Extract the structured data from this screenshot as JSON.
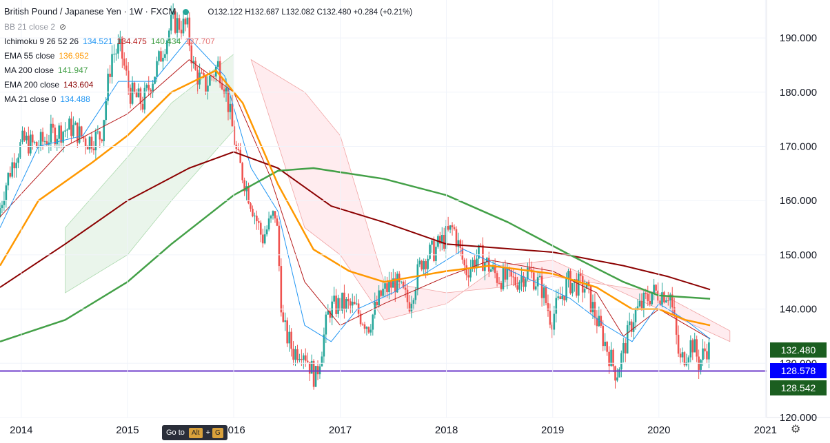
{
  "header": {
    "symbol": "British Pound / Japanese Yen · 1W · FXCM",
    "ohlc": "O132.122  H132.687  L132.082  C132.480  +0.284 (+0.21%)"
  },
  "indicators": [
    {
      "label": "BB 21 close 2",
      "values": [],
      "colors": [],
      "muted": true,
      "hidden_icon": "eye-off-icon"
    },
    {
      "label": "Ichimoku 9 26 52 26",
      "values": [
        "134.521",
        "134.475",
        "140.434",
        "137.707"
      ],
      "colors": [
        "#2196f3",
        "#b71c1c",
        "#43a047",
        "#e57373"
      ]
    },
    {
      "label": "EMA 55 close",
      "values": [
        "136.952"
      ],
      "colors": [
        "#ff9800"
      ]
    },
    {
      "label": "MA 200 close",
      "values": [
        "141.947"
      ],
      "colors": [
        "#43a047"
      ]
    },
    {
      "label": "EMA 200 close",
      "values": [
        "143.604"
      ],
      "colors": [
        "#8b0000"
      ]
    },
    {
      "label": "MA 21 close 0",
      "values": [
        "134.488"
      ],
      "colors": [
        "#2196f3"
      ]
    }
  ],
  "price_tags": [
    {
      "value": "132.480",
      "color": "#1b5e20"
    },
    {
      "value": "128.578",
      "color": "#0000ff"
    },
    {
      "value": "128.542",
      "color": "#1b5e20"
    }
  ],
  "goto": {
    "label": "Go to",
    "key1": "Alt",
    "plus": "+",
    "key2": "G"
  },
  "colors": {
    "up": "#26a69a",
    "down": "#ef5350",
    "hline": "#6a35c9",
    "ema55": "#ff9800",
    "ma200": "#43a047",
    "ema200": "#8b0000",
    "ma21": "#2196f3",
    "kijun": "#b71c1c",
    "cloud_bull": "#e8f5e9",
    "cloud_bear": "#ffebee"
  },
  "chart_data": {
    "type": "line",
    "ylim": [
      120,
      197
    ],
    "xlim": [
      "2013-10-20",
      "2021-01-05"
    ],
    "yticks": [
      120,
      130,
      140,
      150,
      160,
      170,
      180,
      190
    ],
    "ytick_labels": [
      "120.000",
      "130.000",
      "140.000",
      "150.000",
      "160.000",
      "170.000",
      "180.000",
      "190.000"
    ],
    "xticks": [
      "2014-01-01",
      "2015-01-01",
      "2016-01-01",
      "2017-01-01",
      "2018-01-01",
      "2019-01-01",
      "2020-01-01",
      "2021-01-01"
    ],
    "xtick_labels": [
      "2014",
      "2015",
      "2016",
      "2017",
      "2018",
      "2019",
      "2020",
      "2021"
    ],
    "horizontal_line": 128.578,
    "candle_path": [
      [
        "2013-10-20",
        157.0
      ],
      [
        "2013-11-10",
        162
      ],
      [
        "2013-12-15",
        168
      ],
      [
        "2014-01-15",
        171
      ],
      [
        "2014-03-01",
        170
      ],
      [
        "2014-05-01",
        172.5
      ],
      [
        "2014-07-01",
        173.5
      ],
      [
        "2014-08-20",
        171
      ],
      [
        "2014-10-10",
        172
      ],
      [
        "2014-11-15",
        187
      ],
      [
        "2014-12-15",
        188
      ],
      [
        "2015-01-15",
        180
      ],
      [
        "2015-03-01",
        178
      ],
      [
        "2015-04-15",
        184
      ],
      [
        "2015-06-10",
        193
      ],
      [
        "2015-08-01",
        192
      ],
      [
        "2015-08-25",
        184
      ],
      [
        "2015-10-01",
        181
      ],
      [
        "2015-11-15",
        185
      ],
      [
        "2015-12-10",
        181
      ],
      [
        "2016-01-20",
        168
      ],
      [
        "2016-03-01",
        161
      ],
      [
        "2016-04-15",
        153
      ],
      [
        "2016-06-01",
        158
      ],
      [
        "2016-06-24",
        137
      ],
      [
        "2016-08-01",
        132
      ],
      [
        "2016-09-01",
        133
      ],
      [
        "2016-10-15",
        127
      ],
      [
        "2016-12-01",
        140
      ],
      [
        "2017-01-15",
        141
      ],
      [
        "2017-03-01",
        140
      ],
      [
        "2017-04-15",
        137
      ],
      [
        "2017-06-01",
        143
      ],
      [
        "2017-07-15",
        145
      ],
      [
        "2017-09-01",
        141
      ],
      [
        "2017-10-15",
        149
      ],
      [
        "2017-12-01",
        151
      ],
      [
        "2018-02-01",
        155
      ],
      [
        "2018-03-15",
        147
      ],
      [
        "2018-05-01",
        150
      ],
      [
        "2018-07-01",
        146
      ],
      [
        "2018-09-01",
        145
      ],
      [
        "2018-10-15",
        147
      ],
      [
        "2018-12-01",
        144
      ],
      [
        "2019-01-03",
        138
      ],
      [
        "2019-03-01",
        145
      ],
      [
        "2019-05-01",
        144
      ],
      [
        "2019-06-15",
        137
      ],
      [
        "2019-08-15",
        128
      ],
      [
        "2019-10-15",
        139
      ],
      [
        "2019-12-15",
        143
      ],
      [
        "2020-02-15",
        143
      ],
      [
        "2020-03-20",
        130
      ],
      [
        "2020-05-01",
        134
      ],
      [
        "2020-05-25",
        130
      ],
      [
        "2020-06-20",
        133
      ],
      [
        "2020-06-25",
        132.5
      ]
    ],
    "series": [
      {
        "key": "ema200",
        "points": [
          [
            "2013-10-20",
            144
          ],
          [
            "2014-06-01",
            152
          ],
          [
            "2015-01-01",
            160
          ],
          [
            "2015-08-01",
            166
          ],
          [
            "2016-01-01",
            169
          ],
          [
            "2016-06-01",
            166
          ],
          [
            "2016-12-01",
            159
          ],
          [
            "2017-06-01",
            156
          ],
          [
            "2018-01-01",
            152
          ],
          [
            "2019-01-01",
            150.5
          ],
          [
            "2019-09-01",
            148
          ],
          [
            "2020-02-01",
            146
          ],
          [
            "2020-06-25",
            143.6
          ]
        ]
      },
      {
        "key": "ma200",
        "points": [
          [
            "2013-10-20",
            134
          ],
          [
            "2014-06-01",
            138
          ],
          [
            "2015-01-01",
            145
          ],
          [
            "2015-06-01",
            152
          ],
          [
            "2016-01-01",
            161
          ],
          [
            "2016-06-01",
            165.5
          ],
          [
            "2016-10-01",
            166
          ],
          [
            "2017-06-01",
            164
          ],
          [
            "2018-01-01",
            161
          ],
          [
            "2018-08-01",
            156
          ],
          [
            "2019-03-01",
            150
          ],
          [
            "2019-09-01",
            145
          ],
          [
            "2020-01-01",
            142.5
          ],
          [
            "2020-06-25",
            141.9
          ]
        ]
      },
      {
        "key": "ema55",
        "points": [
          [
            "2013-10-20",
            148
          ],
          [
            "2014-03-01",
            160
          ],
          [
            "2014-09-01",
            167
          ],
          [
            "2015-01-01",
            172
          ],
          [
            "2015-06-01",
            180
          ],
          [
            "2015-11-01",
            184
          ],
          [
            "2016-02-01",
            178
          ],
          [
            "2016-06-01",
            163
          ],
          [
            "2016-10-01",
            151
          ],
          [
            "2017-02-01",
            147
          ],
          [
            "2017-06-01",
            145
          ],
          [
            "2018-01-01",
            147
          ],
          [
            "2018-06-01",
            148
          ],
          [
            "2019-01-01",
            146.5
          ],
          [
            "2019-06-01",
            144
          ],
          [
            "2019-10-01",
            140
          ],
          [
            "2020-01-01",
            140
          ],
          [
            "2020-04-01",
            138
          ],
          [
            "2020-06-25",
            137
          ]
        ]
      },
      {
        "key": "ma21",
        "points": [
          [
            "2013-10-20",
            155
          ],
          [
            "2014-03-01",
            170
          ],
          [
            "2014-08-01",
            172
          ],
          [
            "2014-12-01",
            182
          ],
          [
            "2015-04-01",
            182
          ],
          [
            "2015-08-01",
            190
          ],
          [
            "2015-12-01",
            183
          ],
          [
            "2016-03-01",
            166
          ],
          [
            "2016-06-01",
            158
          ],
          [
            "2016-09-01",
            137
          ],
          [
            "2016-12-01",
            134
          ],
          [
            "2017-03-01",
            140
          ],
          [
            "2017-07-01",
            143
          ],
          [
            "2017-11-01",
            147
          ],
          [
            "2018-03-01",
            151
          ],
          [
            "2018-07-01",
            148
          ],
          [
            "2018-11-01",
            145
          ],
          [
            "2019-03-01",
            142
          ],
          [
            "2019-07-01",
            137
          ],
          [
            "2019-10-01",
            134
          ],
          [
            "2020-01-01",
            141
          ],
          [
            "2020-04-01",
            138
          ],
          [
            "2020-06-25",
            134.5
          ]
        ]
      },
      {
        "key": "kijun",
        "points": [
          [
            "2013-10-20",
            157
          ],
          [
            "2014-06-01",
            170
          ],
          [
            "2015-01-01",
            176
          ],
          [
            "2015-08-01",
            186
          ],
          [
            "2016-01-01",
            180
          ],
          [
            "2016-05-01",
            165
          ],
          [
            "2016-09-01",
            145
          ],
          [
            "2017-01-01",
            137
          ],
          [
            "2017-06-01",
            141
          ],
          [
            "2018-01-01",
            146
          ],
          [
            "2018-06-01",
            149
          ],
          [
            "2019-01-01",
            147
          ],
          [
            "2019-06-01",
            143
          ],
          [
            "2019-09-01",
            135
          ],
          [
            "2020-01-01",
            140
          ],
          [
            "2020-06-25",
            134.5
          ]
        ]
      },
      {
        "key": "cloud_bull_a",
        "points": [
          [
            "2014-06-01",
            155
          ],
          [
            "2015-01-01",
            168
          ],
          [
            "2015-06-01",
            178
          ],
          [
            "2016-01-01",
            187
          ]
        ]
      },
      {
        "key": "cloud_bull_b",
        "points": [
          [
            "2014-06-01",
            143
          ],
          [
            "2015-01-01",
            150
          ],
          [
            "2015-06-01",
            160
          ],
          [
            "2016-01-01",
            173
          ]
        ]
      },
      {
        "key": "cloud_bear_a",
        "points": [
          [
            "2016-03-01",
            186
          ],
          [
            "2016-09-01",
            180
          ],
          [
            "2017-01-01",
            172
          ],
          [
            "2017-06-01",
            145
          ],
          [
            "2018-01-01",
            143
          ],
          [
            "2018-07-01",
            144
          ],
          [
            "2019-01-01",
            146
          ],
          [
            "2020-01-01",
            143
          ],
          [
            "2020-09-01",
            136
          ]
        ]
      },
      {
        "key": "cloud_bear_b",
        "points": [
          [
            "2016-03-01",
            186
          ],
          [
            "2016-09-01",
            155
          ],
          [
            "2017-01-01",
            150
          ],
          [
            "2017-06-01",
            138
          ],
          [
            "2018-01-01",
            141
          ],
          [
            "2018-07-01",
            148
          ],
          [
            "2019-01-01",
            149
          ],
          [
            "2020-01-01",
            140
          ],
          [
            "2020-09-01",
            134
          ]
        ]
      }
    ]
  }
}
